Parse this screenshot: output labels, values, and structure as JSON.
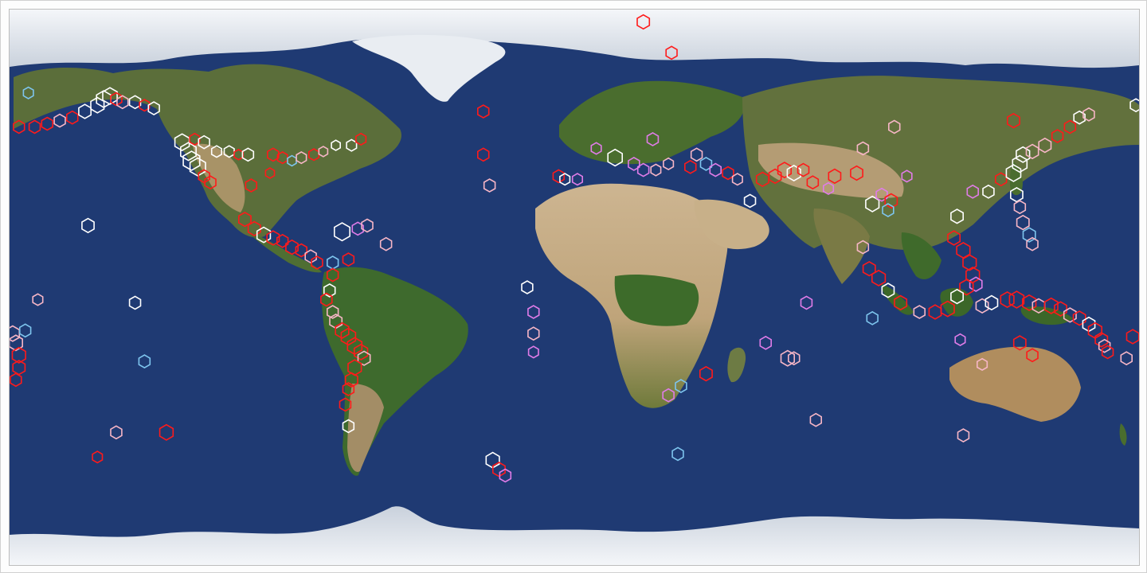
{
  "colors": {
    "ocean": "#1f3a73",
    "land_arid": "#b9a27c",
    "land_green": "#3f6b2c",
    "ice": "#e7eaef",
    "marker_red": "#ff1a1a",
    "marker_white": "#ffffff",
    "marker_pink": "#f7b6c6",
    "marker_violet": "#e07ce8",
    "marker_skyblue": "#7ec5ee"
  },
  "map": {
    "projection": "equirectangular",
    "basemap": "satellite-earth",
    "marker_shape": "hexagon-outline-icon"
  },
  "earthquakes": [
    {
      "lon": 22,
      "lat": 86,
      "color": "red",
      "size": 1.1
    },
    {
      "lon": 31,
      "lat": 76,
      "color": "red",
      "size": 1.0
    },
    {
      "lon": -177,
      "lat": 52,
      "color": "red",
      "size": 1.0
    },
    {
      "lon": -172,
      "lat": 52,
      "color": "red",
      "size": 1.0
    },
    {
      "lon": -168,
      "lat": 53,
      "color": "red",
      "size": 1.0
    },
    {
      "lon": -164,
      "lat": 54,
      "color": "pink",
      "size": 1.0
    },
    {
      "lon": -160,
      "lat": 55,
      "color": "red",
      "size": 1.0
    },
    {
      "lon": -156,
      "lat": 57,
      "color": "white",
      "size": 1.1
    },
    {
      "lon": -152,
      "lat": 59,
      "color": "white",
      "size": 1.2
    },
    {
      "lon": -150,
      "lat": 61,
      "color": "white",
      "size": 1.3
    },
    {
      "lon": -148,
      "lat": 62,
      "color": "white",
      "size": 1.3
    },
    {
      "lon": -146,
      "lat": 61,
      "color": "red",
      "size": 1.0
    },
    {
      "lon": -144,
      "lat": 60,
      "color": "pink",
      "size": 1.0
    },
    {
      "lon": -140,
      "lat": 60,
      "color": "white",
      "size": 1.0
    },
    {
      "lon": -137,
      "lat": 59,
      "color": "red",
      "size": 0.9
    },
    {
      "lon": -134,
      "lat": 58,
      "color": "white",
      "size": 1.0
    },
    {
      "lon": -174,
      "lat": 63,
      "color": "skyblue",
      "size": 0.9
    },
    {
      "lon": -125,
      "lat": 47,
      "color": "white",
      "size": 1.3
    },
    {
      "lon": -123,
      "lat": 44,
      "color": "white",
      "size": 1.4
    },
    {
      "lon": -122,
      "lat": 41,
      "color": "white",
      "size": 1.5
    },
    {
      "lon": -120,
      "lat": 39,
      "color": "white",
      "size": 1.4
    },
    {
      "lon": -118,
      "lat": 36,
      "color": "red",
      "size": 1.0
    },
    {
      "lon": -116,
      "lat": 34,
      "color": "red",
      "size": 1.0
    },
    {
      "lon": -121,
      "lat": 48,
      "color": "red",
      "size": 0.9
    },
    {
      "lon": -118,
      "lat": 47,
      "color": "white",
      "size": 1.0
    },
    {
      "lon": -114,
      "lat": 44,
      "color": "white",
      "size": 0.9
    },
    {
      "lon": -110,
      "lat": 44,
      "color": "white",
      "size": 0.9
    },
    {
      "lon": -107,
      "lat": 43,
      "color": "red",
      "size": 0.8
    },
    {
      "lon": -104,
      "lat": 43,
      "color": "white",
      "size": 1.0
    },
    {
      "lon": -96,
      "lat": 43,
      "color": "red",
      "size": 1.0
    },
    {
      "lon": -93,
      "lat": 42,
      "color": "red",
      "size": 0.9
    },
    {
      "lon": -90,
      "lat": 41,
      "color": "skyblue",
      "size": 0.8
    },
    {
      "lon": -87,
      "lat": 42,
      "color": "pink",
      "size": 0.9
    },
    {
      "lon": -83,
      "lat": 43,
      "color": "red",
      "size": 0.9
    },
    {
      "lon": -80,
      "lat": 44,
      "color": "pink",
      "size": 0.8
    },
    {
      "lon": -76,
      "lat": 46,
      "color": "white",
      "size": 0.8
    },
    {
      "lon": -71,
      "lat": 46,
      "color": "white",
      "size": 0.9
    },
    {
      "lon": -68,
      "lat": 48,
      "color": "red",
      "size": 0.9
    },
    {
      "lon": -97,
      "lat": 37,
      "color": "red",
      "size": 0.8
    },
    {
      "lon": -103,
      "lat": 33,
      "color": "red",
      "size": 1.0
    },
    {
      "lon": -105,
      "lat": 22,
      "color": "red",
      "size": 1.1
    },
    {
      "lon": -102,
      "lat": 19,
      "color": "red",
      "size": 1.1
    },
    {
      "lon": -99,
      "lat": 17,
      "color": "white",
      "size": 1.2
    },
    {
      "lon": -96,
      "lat": 16,
      "color": "red",
      "size": 1.1
    },
    {
      "lon": -93,
      "lat": 15,
      "color": "red",
      "size": 1.0
    },
    {
      "lon": -90,
      "lat": 13,
      "color": "red",
      "size": 1.1
    },
    {
      "lon": -87,
      "lat": 12,
      "color": "red",
      "size": 1.0
    },
    {
      "lon": -84,
      "lat": 10,
      "color": "pink",
      "size": 1.0
    },
    {
      "lon": -82,
      "lat": 8,
      "color": "red",
      "size": 1.0
    },
    {
      "lon": -77,
      "lat": 8,
      "color": "skyblue",
      "size": 1.0
    },
    {
      "lon": -72,
      "lat": 9,
      "color": "red",
      "size": 1.0
    },
    {
      "lon": -74,
      "lat": 18,
      "color": "white",
      "size": 1.4
    },
    {
      "lon": -69,
      "lat": 19,
      "color": "violet",
      "size": 1.0
    },
    {
      "lon": -66,
      "lat": 20,
      "color": "pink",
      "size": 1.0
    },
    {
      "lon": -60,
      "lat": 14,
      "color": "pink",
      "size": 1.0
    },
    {
      "lon": -77,
      "lat": 4,
      "color": "red",
      "size": 1.0
    },
    {
      "lon": -78,
      "lat": -1,
      "color": "white",
      "size": 1.0
    },
    {
      "lon": -79,
      "lat": -4,
      "color": "red",
      "size": 1.0
    },
    {
      "lon": -77,
      "lat": -8,
      "color": "pink",
      "size": 1.0
    },
    {
      "lon": -76,
      "lat": -11,
      "color": "pink",
      "size": 1.1
    },
    {
      "lon": -74,
      "lat": -14,
      "color": "red",
      "size": 1.2
    },
    {
      "lon": -72,
      "lat": -16,
      "color": "red",
      "size": 1.3
    },
    {
      "lon": -70,
      "lat": -19,
      "color": "red",
      "size": 1.3
    },
    {
      "lon": -68,
      "lat": -21,
      "color": "red",
      "size": 1.2
    },
    {
      "lon": -67,
      "lat": -23,
      "color": "pink",
      "size": 1.1
    },
    {
      "lon": -70,
      "lat": -26,
      "color": "red",
      "size": 1.2
    },
    {
      "lon": -71,
      "lat": -30,
      "color": "red",
      "size": 1.1
    },
    {
      "lon": -72,
      "lat": -33,
      "color": "red",
      "size": 1.0
    },
    {
      "lon": -73,
      "lat": -38,
      "color": "red",
      "size": 1.0
    },
    {
      "lon": -72,
      "lat": -45,
      "color": "white",
      "size": 1.0
    },
    {
      "lon": -179,
      "lat": -15,
      "color": "pink",
      "size": 1.2
    },
    {
      "lon": -178,
      "lat": -18,
      "color": "pink",
      "size": 1.2
    },
    {
      "lon": -177,
      "lat": -22,
      "color": "red",
      "size": 1.2
    },
    {
      "lon": -177,
      "lat": -26,
      "color": "red",
      "size": 1.1
    },
    {
      "lon": -178,
      "lat": -30,
      "color": "red",
      "size": 1.0
    },
    {
      "lon": -175,
      "lat": -14,
      "color": "skyblue",
      "size": 1.0
    },
    {
      "lon": -155,
      "lat": 20,
      "color": "white",
      "size": 1.1
    },
    {
      "lon": -171,
      "lat": -4,
      "color": "pink",
      "size": 0.9
    },
    {
      "lon": -140,
      "lat": -5,
      "color": "white",
      "size": 1.0
    },
    {
      "lon": -137,
      "lat": -24,
      "color": "skyblue",
      "size": 1.0
    },
    {
      "lon": -146,
      "lat": -47,
      "color": "pink",
      "size": 1.0
    },
    {
      "lon": -130,
      "lat": -47,
      "color": "red",
      "size": 1.2
    },
    {
      "lon": -152,
      "lat": -55,
      "color": "red",
      "size": 0.9
    },
    {
      "lon": -29,
      "lat": 43,
      "color": "red",
      "size": 1.0
    },
    {
      "lon": -27,
      "lat": 33,
      "color": "pink",
      "size": 1.0
    },
    {
      "lon": -29,
      "lat": 57,
      "color": "red",
      "size": 1.0
    },
    {
      "lon": -15,
      "lat": 0,
      "color": "white",
      "size": 1.0
    },
    {
      "lon": -13,
      "lat": -8,
      "color": "violet",
      "size": 1.0
    },
    {
      "lon": -13,
      "lat": -15,
      "color": "pink",
      "size": 1.0
    },
    {
      "lon": -13,
      "lat": -21,
      "color": "violet",
      "size": 0.9
    },
    {
      "lon": -26,
      "lat": -56,
      "color": "white",
      "size": 1.2
    },
    {
      "lon": -24,
      "lat": -59,
      "color": "red",
      "size": 1.1
    },
    {
      "lon": -22,
      "lat": -61,
      "color": "violet",
      "size": 1.0
    },
    {
      "lon": -5,
      "lat": 36,
      "color": "red",
      "size": 1.0
    },
    {
      "lon": -3,
      "lat": 35,
      "color": "white",
      "size": 0.9
    },
    {
      "lon": 1,
      "lat": 35,
      "color": "violet",
      "size": 0.9
    },
    {
      "lon": 7,
      "lat": 45,
      "color": "violet",
      "size": 0.9
    },
    {
      "lon": 13,
      "lat": 42,
      "color": "white",
      "size": 1.3
    },
    {
      "lon": 19,
      "lat": 40,
      "color": "violet",
      "size": 1.0
    },
    {
      "lon": 22,
      "lat": 38,
      "color": "violet",
      "size": 1.0
    },
    {
      "lon": 26,
      "lat": 38,
      "color": "pink",
      "size": 0.9
    },
    {
      "lon": 30,
      "lat": 40,
      "color": "pink",
      "size": 0.9
    },
    {
      "lon": 25,
      "lat": 48,
      "color": "violet",
      "size": 1.0
    },
    {
      "lon": 37,
      "lat": 39,
      "color": "red",
      "size": 1.0
    },
    {
      "lon": 39,
      "lat": 43,
      "color": "pink",
      "size": 1.0
    },
    {
      "lon": 42,
      "lat": 40,
      "color": "skyblue",
      "size": 1.0
    },
    {
      "lon": 45,
      "lat": 38,
      "color": "violet",
      "size": 1.0
    },
    {
      "lon": 49,
      "lat": 37,
      "color": "red",
      "size": 1.0
    },
    {
      "lon": 52,
      "lat": 35,
      "color": "pink",
      "size": 0.9
    },
    {
      "lon": 56,
      "lat": 28,
      "color": "white",
      "size": 1.0
    },
    {
      "lon": 60,
      "lat": 35,
      "color": "red",
      "size": 1.1
    },
    {
      "lon": 64,
      "lat": 36,
      "color": "red",
      "size": 1.1
    },
    {
      "lon": 67,
      "lat": 38,
      "color": "red",
      "size": 1.2
    },
    {
      "lon": 70,
      "lat": 37,
      "color": "white",
      "size": 1.2
    },
    {
      "lon": 73,
      "lat": 38,
      "color": "red",
      "size": 1.0
    },
    {
      "lon": 76,
      "lat": 34,
      "color": "red",
      "size": 1.0
    },
    {
      "lon": 81,
      "lat": 32,
      "color": "violet",
      "size": 0.9
    },
    {
      "lon": 83,
      "lat": 36,
      "color": "red",
      "size": 1.1
    },
    {
      "lon": 90,
      "lat": 37,
      "color": "red",
      "size": 1.1
    },
    {
      "lon": 95,
      "lat": 27,
      "color": "white",
      "size": 1.2
    },
    {
      "lon": 98,
      "lat": 30,
      "color": "violet",
      "size": 1.0
    },
    {
      "lon": 101,
      "lat": 28,
      "color": "red",
      "size": 1.1
    },
    {
      "lon": 100,
      "lat": 25,
      "color": "skyblue",
      "size": 1.0
    },
    {
      "lon": 92,
      "lat": 45,
      "color": "pink",
      "size": 1.0
    },
    {
      "lon": 102,
      "lat": 52,
      "color": "pink",
      "size": 1.0
    },
    {
      "lon": 106,
      "lat": 36,
      "color": "violet",
      "size": 0.9
    },
    {
      "lon": 122,
      "lat": 23,
      "color": "white",
      "size": 1.1
    },
    {
      "lon": 121,
      "lat": 16,
      "color": "red",
      "size": 1.1
    },
    {
      "lon": 124,
      "lat": 12,
      "color": "red",
      "size": 1.2
    },
    {
      "lon": 126,
      "lat": 8,
      "color": "red",
      "size": 1.2
    },
    {
      "lon": 127,
      "lat": 4,
      "color": "red",
      "size": 1.2
    },
    {
      "lon": 128,
      "lat": 1,
      "color": "violet",
      "size": 1.1
    },
    {
      "lon": 125,
      "lat": 0,
      "color": "red",
      "size": 1.2
    },
    {
      "lon": 122,
      "lat": -3,
      "color": "white",
      "size": 1.1
    },
    {
      "lon": 119,
      "lat": -7,
      "color": "red",
      "size": 1.2
    },
    {
      "lon": 115,
      "lat": -8,
      "color": "red",
      "size": 1.1
    },
    {
      "lon": 110,
      "lat": -8,
      "color": "pink",
      "size": 1.0
    },
    {
      "lon": 104,
      "lat": -5,
      "color": "red",
      "size": 1.1
    },
    {
      "lon": 100,
      "lat": -1,
      "color": "white",
      "size": 1.1
    },
    {
      "lon": 97,
      "lat": 3,
      "color": "red",
      "size": 1.2
    },
    {
      "lon": 94,
      "lat": 6,
      "color": "red",
      "size": 1.1
    },
    {
      "lon": 92,
      "lat": 13,
      "color": "pink",
      "size": 1.0
    },
    {
      "lon": 95,
      "lat": -10,
      "color": "skyblue",
      "size": 1.0
    },
    {
      "lon": 130,
      "lat": -6,
      "color": "pink",
      "size": 1.1
    },
    {
      "lon": 133,
      "lat": -5,
      "color": "white",
      "size": 1.1
    },
    {
      "lon": 138,
      "lat": -4,
      "color": "red",
      "size": 1.2
    },
    {
      "lon": 141,
      "lat": -4,
      "color": "red",
      "size": 1.3
    },
    {
      "lon": 145,
      "lat": -5,
      "color": "red",
      "size": 1.2
    },
    {
      "lon": 148,
      "lat": -6,
      "color": "pink",
      "size": 1.1
    },
    {
      "lon": 152,
      "lat": -6,
      "color": "red",
      "size": 1.2
    },
    {
      "lon": 155,
      "lat": -7,
      "color": "red",
      "size": 1.1
    },
    {
      "lon": 158,
      "lat": -9,
      "color": "pink",
      "size": 1.1
    },
    {
      "lon": 161,
      "lat": -10,
      "color": "red",
      "size": 1.1
    },
    {
      "lon": 164,
      "lat": -12,
      "color": "white",
      "size": 1.1
    },
    {
      "lon": 166,
      "lat": -14,
      "color": "red",
      "size": 1.2
    },
    {
      "lon": 168,
      "lat": -17,
      "color": "red",
      "size": 1.1
    },
    {
      "lon": 169,
      "lat": -19,
      "color": "pink",
      "size": 1.0
    },
    {
      "lon": 170,
      "lat": -21,
      "color": "red",
      "size": 1.0
    },
    {
      "lon": 136,
      "lat": 35,
      "color": "red",
      "size": 1.0
    },
    {
      "lon": 140,
      "lat": 37,
      "color": "white",
      "size": 1.3
    },
    {
      "lon": 142,
      "lat": 40,
      "color": "white",
      "size": 1.3
    },
    {
      "lon": 143,
      "lat": 43,
      "color": "white",
      "size": 1.2
    },
    {
      "lon": 146,
      "lat": 44,
      "color": "pink",
      "size": 1.1
    },
    {
      "lon": 150,
      "lat": 46,
      "color": "pink",
      "size": 1.1
    },
    {
      "lon": 154,
      "lat": 49,
      "color": "red",
      "size": 1.0
    },
    {
      "lon": 158,
      "lat": 52,
      "color": "red",
      "size": 1.0
    },
    {
      "lon": 161,
      "lat": 55,
      "color": "white",
      "size": 1.0
    },
    {
      "lon": 164,
      "lat": 56,
      "color": "pink",
      "size": 1.0
    },
    {
      "lon": 140,
      "lat": 54,
      "color": "red",
      "size": 1.1
    },
    {
      "lon": 141,
      "lat": 30,
      "color": "white",
      "size": 1.1
    },
    {
      "lon": 142,
      "lat": 26,
      "color": "pink",
      "size": 1.0
    },
    {
      "lon": 143,
      "lat": 21,
      "color": "pink",
      "size": 1.1
    },
    {
      "lon": 145,
      "lat": 17,
      "color": "skyblue",
      "size": 1.1
    },
    {
      "lon": 146,
      "lat": 14,
      "color": "pink",
      "size": 1.0
    },
    {
      "lon": 132,
      "lat": 31,
      "color": "white",
      "size": 1.0
    },
    {
      "lon": 127,
      "lat": 31,
      "color": "violet",
      "size": 1.0
    },
    {
      "lon": 142,
      "lat": -18,
      "color": "red",
      "size": 1.1
    },
    {
      "lon": 146,
      "lat": -22,
      "color": "red",
      "size": 1.0
    },
    {
      "lon": 130,
      "lat": -25,
      "color": "pink",
      "size": 0.9
    },
    {
      "lon": 123,
      "lat": -17,
      "color": "violet",
      "size": 0.9
    },
    {
      "lon": 124,
      "lat": -48,
      "color": "pink",
      "size": 1.0
    },
    {
      "lon": 178,
      "lat": -16,
      "color": "red",
      "size": 1.1
    },
    {
      "lon": 176,
      "lat": -23,
      "color": "pink",
      "size": 1.0
    },
    {
      "lon": 179,
      "lat": 59,
      "color": "white",
      "size": 1.0
    },
    {
      "lon": 68,
      "lat": -23,
      "color": "pink",
      "size": 1.2
    },
    {
      "lon": 70,
      "lat": -23,
      "color": "pink",
      "size": 1.0
    },
    {
      "lon": 61,
      "lat": -18,
      "color": "violet",
      "size": 1.0
    },
    {
      "lon": 74,
      "lat": -5,
      "color": "violet",
      "size": 1.0
    },
    {
      "lon": 42,
      "lat": -28,
      "color": "red",
      "size": 1.1
    },
    {
      "lon": 34,
      "lat": -32,
      "color": "skyblue",
      "size": 1.0
    },
    {
      "lon": 30,
      "lat": -35,
      "color": "violet",
      "size": 1.0
    },
    {
      "lon": 33,
      "lat": -54,
      "color": "skyblue",
      "size": 1.0
    },
    {
      "lon": 77,
      "lat": -43,
      "color": "pink",
      "size": 1.0
    }
  ]
}
